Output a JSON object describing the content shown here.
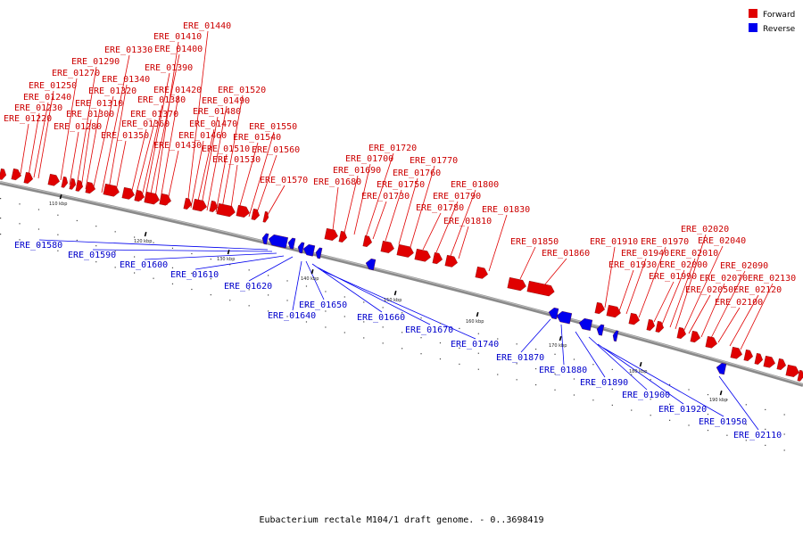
{
  "legend": {
    "forward_label": "Forward",
    "reverse_label": "Reverse",
    "forward_color": "#e00000",
    "reverse_color": "#0000ee"
  },
  "caption": "Eubacterium rectale M104/1 draft genome. - 0..3698419",
  "ticks": [
    "110 kbp",
    "120 kbp",
    "130 kbp",
    "140 kbp",
    "150 kbp",
    "160 kbp",
    "170 kbp",
    "180 kbp",
    "190 kbp"
  ],
  "forward_genes": [
    "ERE_01220",
    "ERE_01230",
    "ERE_01240",
    "ERE_01250",
    "ERE_01270",
    "ERE_01280",
    "ERE_01290",
    "ERE_01300",
    "ERE_01310",
    "ERE_01320",
    "ERE_01330",
    "ERE_01340",
    "ERE_01350",
    "ERE_01360",
    "ERE_01370",
    "ERE_01380",
    "ERE_01390",
    "ERE_01400",
    "ERE_01410",
    "ERE_01420",
    "ERE_01430",
    "ERE_01440",
    "ERE_01460",
    "ERE_01470",
    "ERE_01480",
    "ERE_01490",
    "ERE_01510",
    "ERE_01520",
    "ERE_01530",
    "ERE_01540",
    "ERE_01550",
    "ERE_01560",
    "ERE_01570",
    "ERE_01680",
    "ERE_01690",
    "ERE_01700",
    "ERE_01720",
    "ERE_01730",
    "ERE_01750",
    "ERE_01760",
    "ERE_01770",
    "ERE_01780",
    "ERE_01790",
    "ERE_01800",
    "ERE_01810",
    "ERE_01830",
    "ERE_01850",
    "ERE_01860",
    "ERE_01910",
    "ERE_01930",
    "ERE_01940",
    "ERE_01970",
    "ERE_01990",
    "ERE_02000",
    "ERE_02010",
    "ERE_02020",
    "ERE_02040",
    "ERE_02050",
    "ERE_02070",
    "ERE_02090",
    "ERE_02100",
    "ERE_02120",
    "ERE_02130"
  ],
  "reverse_genes": [
    "ERE_01580",
    "ERE_01590",
    "ERE_01600",
    "ERE_01610",
    "ERE_01620",
    "ERE_01640",
    "ERE_01650",
    "ERE_01660",
    "ERE_01670",
    "ERE_01740",
    "ERE_01870",
    "ERE_01880",
    "ERE_01890",
    "ERE_01900",
    "ERE_01920",
    "ERE_01950",
    "ERE_02110"
  ]
}
